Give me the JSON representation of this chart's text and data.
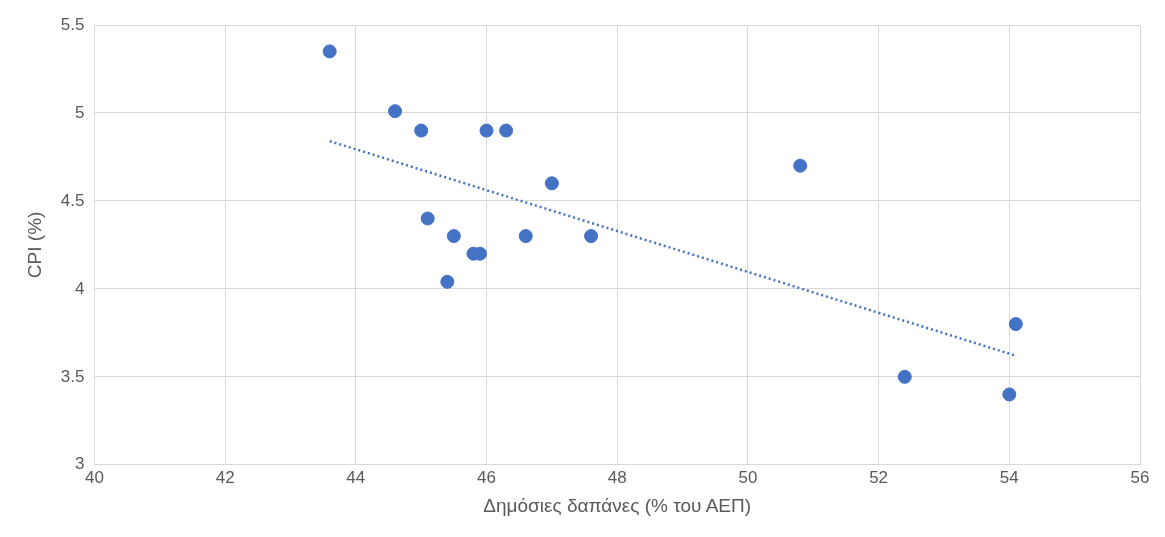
{
  "chart_data": {
    "type": "scatter",
    "xlabel": "Δημόσιες δαπάνες (% του ΑΕΠ)",
    "ylabel": "CPI (%)",
    "xlim": [
      40,
      56
    ],
    "xticks": [
      40,
      42,
      44,
      46,
      48,
      50,
      52,
      54,
      56
    ],
    "ylim": [
      3,
      5.5
    ],
    "yticks": [
      3,
      3.5,
      4,
      4.5,
      5,
      5.5
    ],
    "grid": true,
    "marker": "circle",
    "series": [
      {
        "color": "#4472c4",
        "x": [
          43.6,
          44.6,
          45.0,
          46.0,
          46.3,
          47.0,
          50.8,
          45.1,
          45.5,
          46.6,
          47.6,
          45.8,
          45.9,
          45.4,
          52.4,
          54.1,
          54.0
        ],
        "values": [
          5.35,
          5.01,
          4.9,
          4.9,
          4.9,
          4.6,
          4.7,
          4.4,
          4.3,
          4.3,
          4.3,
          4.2,
          4.2,
          4.04,
          3.5,
          3.8,
          3.4
        ]
      },
      {
        "type": "line",
        "color": "#4472c4",
        "line_style": "dotted",
        "marker": "none",
        "x": [
          43.6,
          54.1
        ],
        "values": [
          4.84,
          3.62
        ]
      }
    ]
  }
}
